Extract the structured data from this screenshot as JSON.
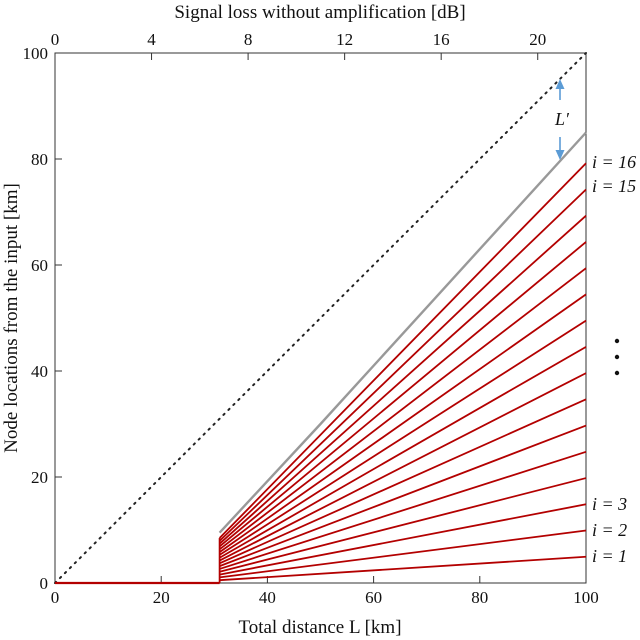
{
  "chart_data": {
    "type": "line",
    "title": "",
    "xlabel": "Total distance L [km]",
    "x2label": "Signal loss without amplification [dB]",
    "ylabel": "Node locations from the input [km]",
    "xlim": [
      0,
      100
    ],
    "ylim": [
      0,
      100
    ],
    "x2lim": [
      0,
      22
    ],
    "xticks": [
      0,
      20,
      40,
      60,
      80,
      100
    ],
    "x2ticks": [
      0,
      4,
      8,
      12,
      16,
      20
    ],
    "yticks": [
      0,
      20,
      40,
      60,
      80,
      100
    ],
    "grid": false,
    "colors": {
      "nodes": "#b30000",
      "Lprime": "#999999",
      "diagonal": "#222222",
      "arrow": "#5b9bd5"
    },
    "threshold_x": 31,
    "zero_segment": {
      "x": [
        0,
        31
      ],
      "y": [
        0,
        0
      ]
    },
    "diagonal": {
      "x": [
        0,
        100
      ],
      "y": [
        0,
        100
      ]
    },
    "Lprime_curve": {
      "x": [
        31,
        50,
        70,
        90,
        100
      ],
      "y": [
        9.5,
        30,
        52,
        74,
        85
      ]
    },
    "node_lines": {
      "x_start": 31,
      "x_end": 100,
      "count": 16,
      "y_end_step": 4.95,
      "y_start_step": 0.53
    },
    "labels": {
      "i16": "i = 16",
      "i15": "i = 15",
      "i3": "i = 3",
      "i2": "i = 2",
      "i1": "i = 1",
      "Lprime": "L′"
    }
  }
}
